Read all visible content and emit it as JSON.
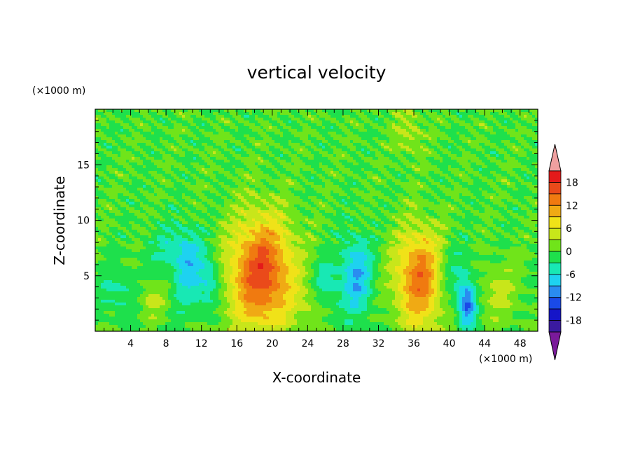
{
  "chart_data": {
    "type": "heatmap",
    "title": "vertical velocity",
    "xlabel": "X-coordinate",
    "ylabel": "Z-coordinate",
    "x_unit": "(×1000 m)",
    "y_unit": "(×1000 m)",
    "xlim": [
      0,
      50
    ],
    "ylim": [
      0,
      20
    ],
    "x_ticks": [
      4,
      8,
      12,
      16,
      20,
      24,
      28,
      32,
      36,
      40,
      44,
      48
    ],
    "y_ticks": [
      5,
      10,
      15
    ],
    "colorbar": {
      "levels": [
        -21,
        -18,
        -15,
        -12,
        -9,
        -6,
        -3,
        0,
        3,
        6,
        9,
        12,
        15,
        18,
        21
      ],
      "tick_labels": [
        18,
        12,
        6,
        0,
        -6,
        -12,
        -18
      ],
      "colors": [
        "#7a1a9a",
        "#3a1aa0",
        "#1515c8",
        "#1a4ae8",
        "#2a8cf0",
        "#1ed2f0",
        "#18e8b4",
        "#1ee04c",
        "#70e41a",
        "#c8e61a",
        "#f0e218",
        "#f0aa14",
        "#f07a10",
        "#ea4a1a",
        "#e41a1a",
        "#f0a0a0"
      ],
      "extend": "both"
    },
    "features": [
      {
        "x": 18.8,
        "z": 5.2,
        "peak": 17,
        "rx": 3.6,
        "rz": 5.0
      },
      {
        "x": 36.8,
        "z": 4.8,
        "peak": 15,
        "rx": 2.8,
        "rz": 4.3
      },
      {
        "x": 6.5,
        "z": 2.8,
        "peak": 4,
        "rx": 1.5,
        "rz": 1.6
      },
      {
        "x": 45.5,
        "z": 3.5,
        "peak": 4,
        "rx": 2.2,
        "rz": 2.5
      },
      {
        "x": 24.5,
        "z": 2.5,
        "peak": 3,
        "rx": 1.8,
        "rz": 1.6
      },
      {
        "x": 35.5,
        "z": 18.0,
        "peak": 4,
        "rx": 1.6,
        "rz": 2.2
      },
      {
        "x": 42.0,
        "z": 2.4,
        "peak": -12,
        "rx": 1.0,
        "rz": 2.0
      },
      {
        "x": 29.5,
        "z": 5.0,
        "peak": -9,
        "rx": 1.8,
        "rz": 3.5
      },
      {
        "x": 10.5,
        "z": 5.5,
        "peak": -7,
        "rx": 1.8,
        "rz": 3.5
      },
      {
        "x": 13.0,
        "z": 4.5,
        "peak": -6,
        "rx": 1.2,
        "rz": 2.2
      },
      {
        "x": 26.0,
        "z": 4.0,
        "peak": -5,
        "rx": 1.5,
        "rz": 2.5
      },
      {
        "x": 2.5,
        "z": 3.5,
        "peak": -4,
        "rx": 2.0,
        "rz": 2.0
      },
      {
        "x": 40.0,
        "z": 5.0,
        "peak": -5,
        "rx": 2.5,
        "rz": 3.0
      },
      {
        "x": 8.5,
        "z": 7.5,
        "peak": -3,
        "rx": 3.0,
        "rz": 2.0
      }
    ]
  }
}
